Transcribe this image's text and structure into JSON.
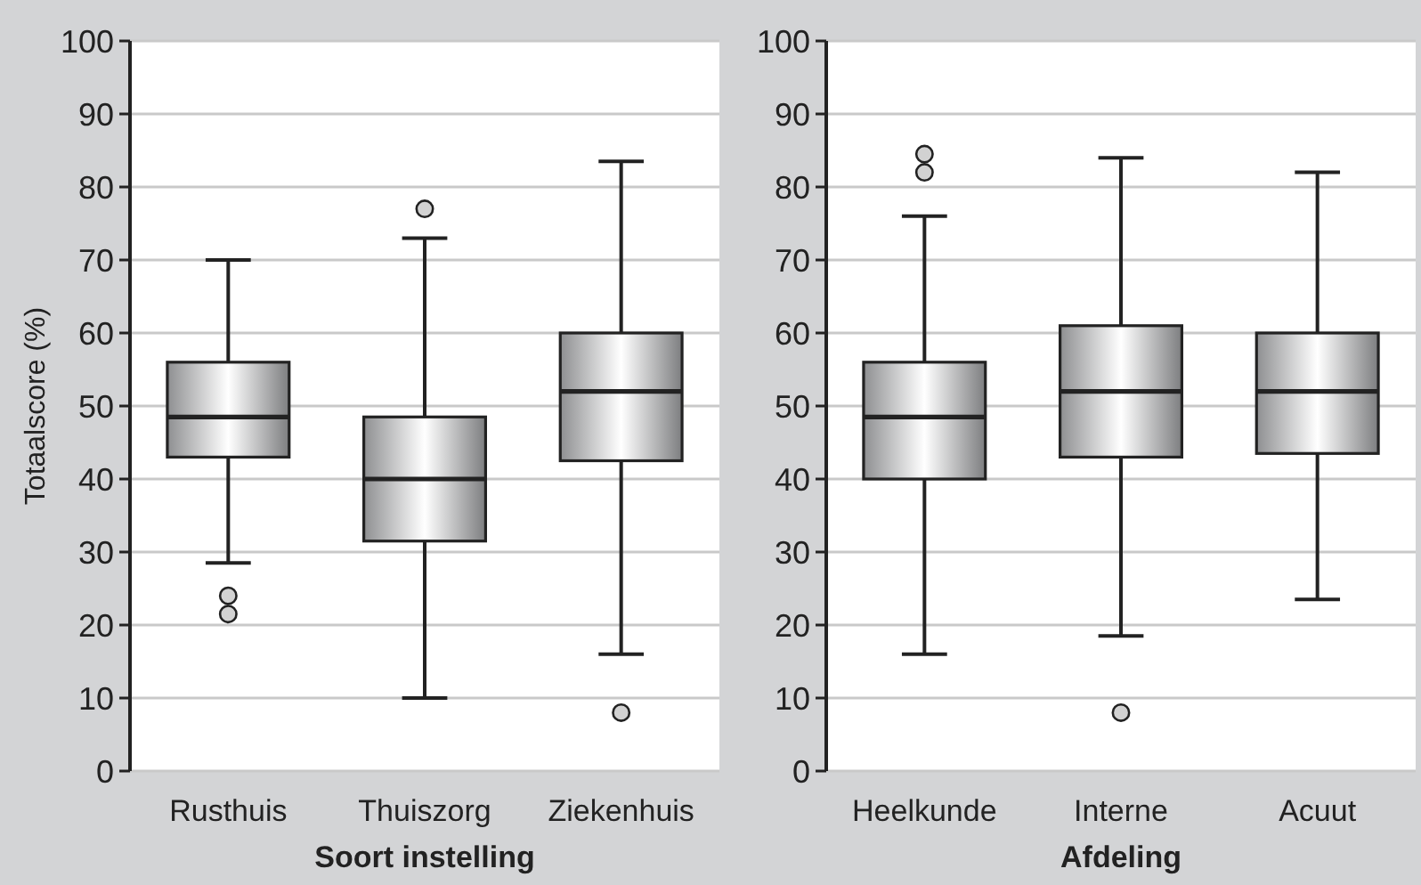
{
  "chart_data": [
    {
      "type": "box",
      "ylabel": "Totaalscore (%)",
      "xlabel": "Soort instelling",
      "categories": [
        "Rusthuis",
        "Thuiszorg",
        "Ziekenhuis"
      ],
      "boxes": [
        {
          "low": 28.5,
          "q1": 43,
          "median": 48.5,
          "q3": 56,
          "high": 70,
          "outliers": [
            24,
            21.5
          ]
        },
        {
          "low": 10,
          "q1": 31.5,
          "median": 40,
          "q3": 48.5,
          "high": 73,
          "outliers": [
            77
          ]
        },
        {
          "low": 16,
          "q1": 42.5,
          "median": 52,
          "q3": 60,
          "high": 83.5,
          "outliers": [
            8
          ]
        }
      ],
      "ylim": [
        0,
        100
      ],
      "yticks": [
        0,
        10,
        20,
        30,
        40,
        50,
        60,
        70,
        80,
        90,
        100
      ],
      "grid": "y"
    },
    {
      "type": "box",
      "xlabel": "Afdeling",
      "categories": [
        "Heelkunde",
        "Interne",
        "Acuut"
      ],
      "boxes": [
        {
          "low": 16,
          "q1": 40,
          "median": 48.5,
          "q3": 56,
          "high": 76,
          "outliers": [
            84.5,
            82
          ]
        },
        {
          "low": 18.5,
          "q1": 43,
          "median": 52,
          "q3": 61,
          "high": 84,
          "outliers": [
            8
          ]
        },
        {
          "low": 23.5,
          "q1": 43.5,
          "median": 52,
          "q3": 60,
          "high": 82
        }
      ],
      "ylim": [
        0,
        100
      ],
      "yticks": [
        0,
        10,
        20,
        30,
        40,
        50,
        60,
        70,
        80,
        90,
        100
      ],
      "grid": "y"
    }
  ]
}
